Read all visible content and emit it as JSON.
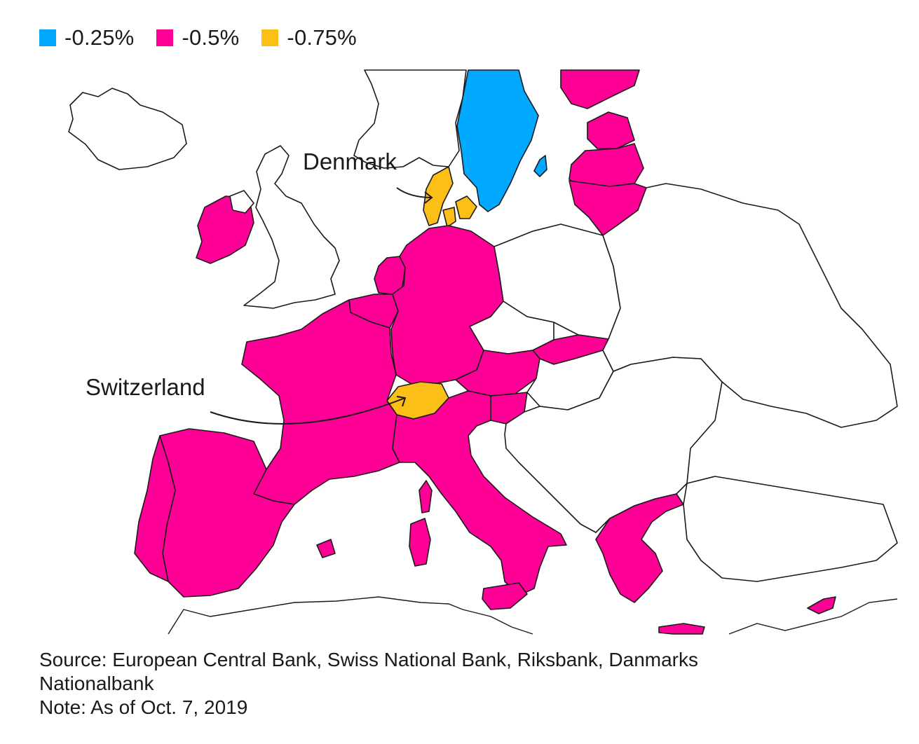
{
  "colors": {
    "sweden": "#00a8ff",
    "eurozone": "#ff0096",
    "peg": "#fbbf17",
    "other": "#ffffff",
    "border": "#1a1a1a"
  },
  "legend": [
    {
      "label": "-0.25%",
      "color": "#00a8ff"
    },
    {
      "label": "-0.5%",
      "color": "#ff0096"
    },
    {
      "label": "-0.75%",
      "color": "#fbbf17"
    }
  ],
  "callouts": {
    "denmark": "Denmark",
    "switzerland": "Switzerland"
  },
  "footer": {
    "source_line1": "Source: European Central Bank, Swiss National Bank, Riksbank, Danmarks",
    "source_line2": "Nationalbank",
    "note": "Note: As of Oct. 7, 2019"
  }
}
